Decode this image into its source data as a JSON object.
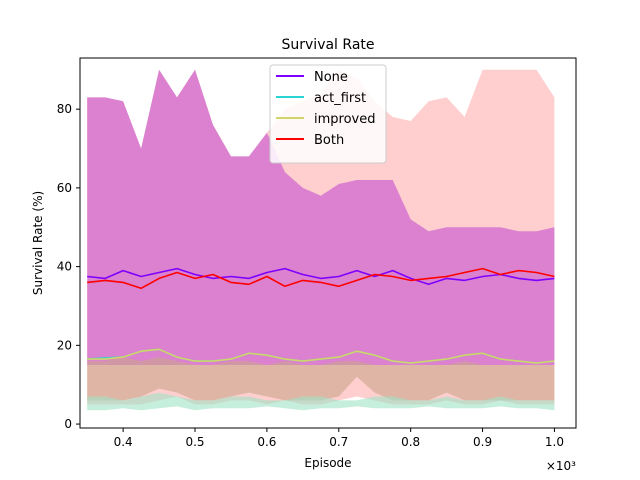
{
  "chart_data": {
    "type": "line",
    "title": "Survival Rate",
    "xlabel": "Episode",
    "ylabel": "Survival Rate (%)",
    "x_multiplier_label": "×10³",
    "xlim": [
      0.34,
      1.03
    ],
    "ylim": [
      -1,
      93
    ],
    "x_ticks": [
      0.4,
      0.5,
      0.6,
      0.7,
      0.8,
      0.9,
      1.0
    ],
    "x_tick_labels": [
      "0.4",
      "0.5",
      "0.6",
      "0.7",
      "0.8",
      "0.9",
      "1.0"
    ],
    "y_ticks": [
      0,
      20,
      40,
      60,
      80
    ],
    "y_tick_labels": [
      "0",
      "20",
      "40",
      "60",
      "80"
    ],
    "grid": false,
    "legend_position": "top-center",
    "x": [
      0.35,
      0.375,
      0.4,
      0.425,
      0.45,
      0.475,
      0.5,
      0.525,
      0.55,
      0.575,
      0.6,
      0.625,
      0.65,
      0.675,
      0.7,
      0.725,
      0.75,
      0.775,
      0.8,
      0.825,
      0.85,
      0.875,
      0.9,
      0.925,
      0.95,
      0.975,
      1.0
    ],
    "series": [
      {
        "name": "None",
        "color": "#7f00ff",
        "values": [
          37.5,
          37.0,
          39.0,
          37.5,
          38.5,
          39.5,
          38.0,
          37.0,
          37.5,
          37.0,
          38.5,
          39.5,
          38.0,
          37.0,
          37.5,
          39.0,
          37.5,
          39.0,
          37.0,
          35.5,
          37.0,
          36.5,
          37.5,
          38.0,
          37.0,
          36.5,
          37.0
        ],
        "band_upper": [
          83,
          83,
          82,
          70,
          90,
          83,
          90,
          76,
          68,
          68,
          74,
          64,
          60,
          58,
          61,
          62,
          62,
          62,
          52,
          49,
          50,
          50,
          50,
          50,
          49,
          49,
          50
        ],
        "band_lower": [
          15,
          15,
          15,
          15,
          15,
          15,
          15,
          15,
          15,
          15,
          15,
          15,
          15,
          15,
          15,
          15,
          15,
          15,
          15,
          15,
          15,
          15,
          15,
          15,
          15,
          15,
          15
        ]
      },
      {
        "name": "act_first",
        "color": "#2ad4d4",
        "values": [
          16.5,
          16.8,
          17.0,
          18.5,
          19.0,
          17.0,
          16.0,
          16.0,
          16.5,
          18.0,
          17.5,
          16.5,
          16.0,
          16.5,
          17.0,
          18.5,
          17.5,
          16.0,
          15.5,
          16.0,
          16.5,
          17.5,
          18.0,
          16.5,
          16.0,
          15.5,
          16.0
        ],
        "band_upper": [
          7,
          7,
          6,
          7,
          8,
          7,
          6,
          6,
          7,
          7,
          6,
          6,
          7,
          7,
          6,
          6,
          7,
          7,
          6,
          6,
          7,
          6,
          6,
          7,
          6,
          6,
          6
        ],
        "band_lower": [
          3.5,
          3.5,
          4.0,
          3.5,
          4.0,
          4.5,
          3.5,
          4.0,
          4.0,
          4.0,
          4.5,
          4.0,
          3.5,
          4.0,
          4.0,
          4.5,
          4.0,
          4.0,
          4.0,
          4.5,
          4.0,
          4.0,
          4.0,
          4.5,
          4.0,
          4.0,
          3.5
        ]
      },
      {
        "name": "improved",
        "color": "#d4d46a",
        "values": [
          16.5,
          16.5,
          17.0,
          18.5,
          19.0,
          17.0,
          16.0,
          16.0,
          16.5,
          18.0,
          17.5,
          16.5,
          16.0,
          16.5,
          17.0,
          18.5,
          17.5,
          16.0,
          15.5,
          16.0,
          16.5,
          17.5,
          18.0,
          16.5,
          16.0,
          15.5,
          16.0
        ],
        "band_upper": [
          16,
          16,
          17,
          16,
          17,
          16,
          15,
          15,
          16,
          16,
          15,
          16,
          15,
          15,
          16,
          16,
          15,
          15,
          15,
          15,
          15,
          16,
          15,
          15,
          15,
          15,
          15
        ],
        "band_lower": [
          6,
          6,
          6,
          7,
          9,
          8,
          6,
          6,
          7,
          8,
          7,
          6,
          6,
          6,
          7,
          12,
          8,
          6,
          6,
          6,
          8,
          6,
          6,
          6,
          6,
          6,
          6
        ]
      },
      {
        "name": "Both",
        "color": "#ff0000",
        "values": [
          36.0,
          36.5,
          36.0,
          34.5,
          37.0,
          38.5,
          37.0,
          38.0,
          36.0,
          35.5,
          37.5,
          35.0,
          36.5,
          36.0,
          35.0,
          36.5,
          38.0,
          37.5,
          36.5,
          37.0,
          37.5,
          38.5,
          39.5,
          38.0,
          39.0,
          38.5,
          37.5
        ],
        "band_upper": [
          83,
          83,
          82,
          70,
          90,
          83,
          90,
          76,
          68,
          68,
          74,
          80,
          82,
          84,
          90,
          88,
          82,
          78,
          77,
          82,
          83,
          78,
          90,
          90,
          90,
          90,
          83
        ],
        "band_lower": [
          5,
          5,
          5,
          5,
          6,
          7,
          5,
          5,
          6,
          6,
          5,
          6,
          5,
          5,
          6,
          7,
          6,
          5,
          5,
          5,
          6,
          5,
          5,
          6,
          5,
          5,
          5
        ]
      }
    ],
    "legend": [
      {
        "label": "None",
        "color": "#7f00ff"
      },
      {
        "label": "act_first",
        "color": "#2ad4d4"
      },
      {
        "label": "improved",
        "color": "#d4d46a"
      },
      {
        "label": "Both",
        "color": "#ff0000"
      }
    ],
    "band_fill_colors": {
      "None": "#c34fd0",
      "act_first": "#9ee2c4",
      "improved": "#c9a68a",
      "Both": "#ffb3b3"
    }
  }
}
